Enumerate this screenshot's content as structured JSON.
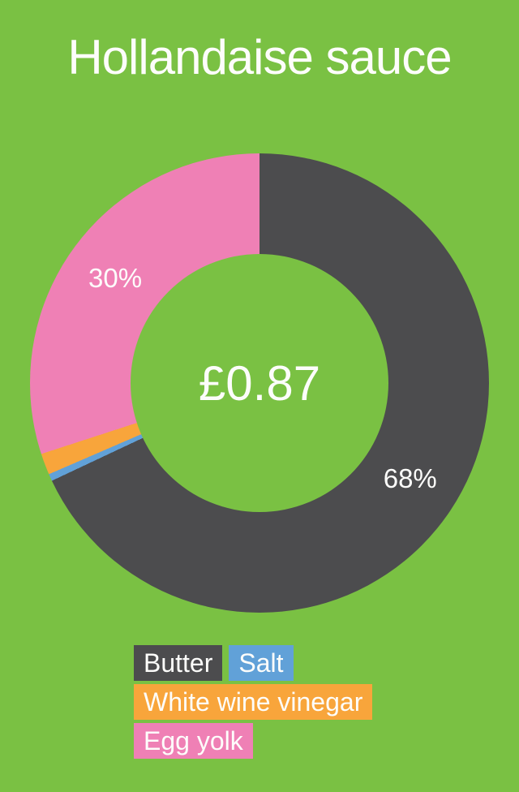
{
  "page": {
    "background": "#7AC143",
    "text_color": "#FDFDFB",
    "title": "Hollandaise sauce"
  },
  "chart_data": {
    "type": "pie",
    "subtype": "donut",
    "title": "Hollandaise sauce",
    "center_label": "£0.87",
    "start_angle_deg": 0,
    "direction": "clockwise",
    "donut_hole_ratio": 0.56,
    "legend_position": "bottom",
    "series": [
      {
        "name": "Butter",
        "value": 68,
        "label": "68%",
        "color": "#4C4C4E"
      },
      {
        "name": "Salt",
        "value": 0.5,
        "label": "",
        "color": "#61A1D8"
      },
      {
        "name": "White wine vinegar",
        "value": 1.5,
        "label": "",
        "color": "#F8A53B"
      },
      {
        "name": "Egg yolk",
        "value": 30,
        "label": "30%",
        "color": "#EF80B5"
      }
    ]
  }
}
